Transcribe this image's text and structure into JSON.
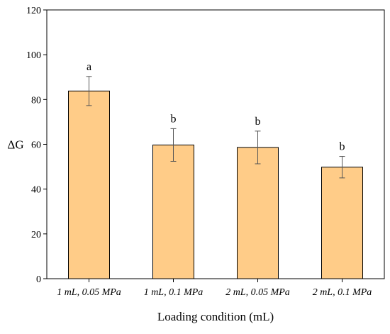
{
  "chart_data": {
    "type": "bar",
    "title": "",
    "xlabel": "Loading condition (mL)",
    "ylabel": "ΔG",
    "ylim": [
      0,
      120
    ],
    "yticks": [
      0,
      20,
      40,
      60,
      80,
      100,
      120
    ],
    "categories": [
      "1 mL, 0.05 MPa",
      "1 mL, 0.1 MPa",
      "2 mL, 0.05 MPa",
      "2 mL, 0.1 MPa"
    ],
    "values": [
      83.8,
      59.7,
      58.6,
      49.8
    ],
    "errors": [
      6.5,
      7.3,
      7.3,
      4.8
    ],
    "significance": [
      "a",
      "b",
      "b",
      "b"
    ],
    "bar_color": "#FFCC88",
    "edge_color": "#000000"
  }
}
